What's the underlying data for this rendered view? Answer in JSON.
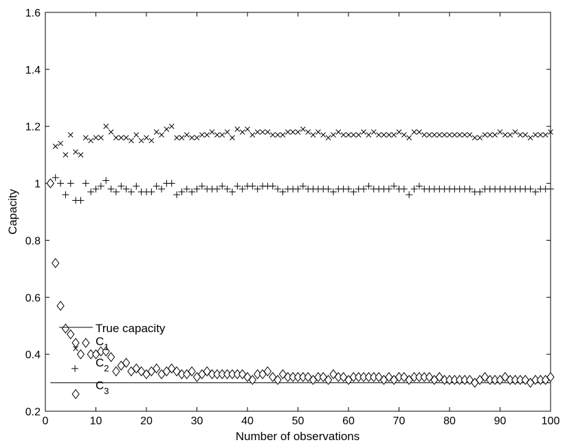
{
  "chart_data": {
    "type": "scatter",
    "title": "",
    "xlabel": "Number of observations",
    "ylabel": "Capacity",
    "xlim": [
      0,
      100
    ],
    "ylim": [
      0.2,
      1.6
    ],
    "xticks": [
      "0",
      "10",
      "20",
      "30",
      "40",
      "50",
      "60",
      "70",
      "80",
      "90",
      "100"
    ],
    "yticks": [
      "0.2",
      "0.4",
      "0.6",
      "0.8",
      "1",
      "1.2",
      "1.4",
      "1.6"
    ],
    "grid": false,
    "legend_position": "lower-left",
    "legend": {
      "true_capacity": "True capacity",
      "c1": "C",
      "c1_sub": "1",
      "c2": "C",
      "c2_sub": "2",
      "c3": "C",
      "c3_sub": "3"
    },
    "true_capacity": 0.3,
    "series": [
      {
        "marker": "x",
        "x": [
          1,
          2,
          3,
          4,
          5,
          6,
          7,
          8,
          9,
          10,
          11,
          12,
          13,
          14,
          15,
          16,
          17,
          18,
          19,
          20,
          21,
          22,
          23,
          24,
          25,
          26,
          27,
          28,
          29,
          30,
          31,
          32,
          33,
          34,
          35,
          36,
          37,
          38,
          39,
          40,
          41,
          42,
          43,
          44,
          45,
          46,
          47,
          48,
          49,
          50,
          51,
          52,
          53,
          54,
          55,
          56,
          57,
          58,
          59,
          60,
          61,
          62,
          63,
          64,
          65,
          66,
          67,
          68,
          69,
          70,
          71,
          72,
          73,
          74,
          75,
          76,
          77,
          78,
          79,
          80,
          81,
          82,
          83,
          84,
          85,
          86,
          87,
          88,
          89,
          90,
          91,
          92,
          93,
          94,
          95,
          96,
          97,
          98,
          99,
          100
        ],
        "y": [
          1.0,
          1.13,
          1.14,
          1.1,
          1.17,
          1.11,
          1.1,
          1.16,
          1.15,
          1.16,
          1.16,
          1.2,
          1.18,
          1.16,
          1.16,
          1.16,
          1.15,
          1.17,
          1.15,
          1.16,
          1.15,
          1.18,
          1.17,
          1.19,
          1.2,
          1.16,
          1.16,
          1.17,
          1.16,
          1.16,
          1.17,
          1.17,
          1.18,
          1.17,
          1.17,
          1.18,
          1.16,
          1.19,
          1.18,
          1.19,
          1.17,
          1.18,
          1.18,
          1.18,
          1.17,
          1.17,
          1.17,
          1.18,
          1.18,
          1.18,
          1.19,
          1.18,
          1.17,
          1.18,
          1.17,
          1.16,
          1.17,
          1.18,
          1.17,
          1.17,
          1.17,
          1.17,
          1.18,
          1.17,
          1.18,
          1.17,
          1.17,
          1.17,
          1.17,
          1.18,
          1.17,
          1.16,
          1.18,
          1.18,
          1.17,
          1.17,
          1.17,
          1.17,
          1.17,
          1.17,
          1.17,
          1.17,
          1.17,
          1.17,
          1.16,
          1.16,
          1.17,
          1.17,
          1.17,
          1.18,
          1.17,
          1.17,
          1.18,
          1.17,
          1.17,
          1.16,
          1.17,
          1.17,
          1.17,
          1.18
        ]
      },
      {
        "marker": "+",
        "x": [
          1,
          2,
          3,
          4,
          5,
          6,
          7,
          8,
          9,
          10,
          11,
          12,
          13,
          14,
          15,
          16,
          17,
          18,
          19,
          20,
          21,
          22,
          23,
          24,
          25,
          26,
          27,
          28,
          29,
          30,
          31,
          32,
          33,
          34,
          35,
          36,
          37,
          38,
          39,
          40,
          41,
          42,
          43,
          44,
          45,
          46,
          47,
          48,
          49,
          50,
          51,
          52,
          53,
          54,
          55,
          56,
          57,
          58,
          59,
          60,
          61,
          62,
          63,
          64,
          65,
          66,
          67,
          68,
          69,
          70,
          71,
          72,
          73,
          74,
          75,
          76,
          77,
          78,
          79,
          80,
          81,
          82,
          83,
          84,
          85,
          86,
          87,
          88,
          89,
          90,
          91,
          92,
          93,
          94,
          95,
          96,
          97,
          98,
          99,
          100
        ],
        "y": [
          1.0,
          1.02,
          1.0,
          0.96,
          1.0,
          0.94,
          0.94,
          1.0,
          0.97,
          0.98,
          0.99,
          1.01,
          0.98,
          0.97,
          0.99,
          0.98,
          0.97,
          0.99,
          0.97,
          0.97,
          0.97,
          0.99,
          0.98,
          1.0,
          1.0,
          0.96,
          0.97,
          0.98,
          0.97,
          0.98,
          0.99,
          0.98,
          0.98,
          0.98,
          0.99,
          0.98,
          0.97,
          0.99,
          0.98,
          0.99,
          0.99,
          0.98,
          0.99,
          0.99,
          0.99,
          0.98,
          0.97,
          0.98,
          0.98,
          0.98,
          0.99,
          0.98,
          0.98,
          0.98,
          0.98,
          0.98,
          0.97,
          0.98,
          0.98,
          0.98,
          0.97,
          0.98,
          0.98,
          0.99,
          0.98,
          0.98,
          0.98,
          0.98,
          0.99,
          0.98,
          0.98,
          0.96,
          0.98,
          0.99,
          0.98,
          0.98,
          0.98,
          0.98,
          0.98,
          0.98,
          0.98,
          0.98,
          0.98,
          0.98,
          0.97,
          0.97,
          0.98,
          0.98,
          0.98,
          0.98,
          0.98,
          0.98,
          0.98,
          0.98,
          0.98,
          0.98,
          0.97,
          0.98,
          0.98,
          0.98
        ]
      },
      {
        "marker": "diamond",
        "x": [
          1,
          2,
          3,
          4,
          5,
          6,
          7,
          8,
          9,
          10,
          11,
          12,
          13,
          14,
          15,
          16,
          17,
          18,
          19,
          20,
          21,
          22,
          23,
          24,
          25,
          26,
          27,
          28,
          29,
          30,
          31,
          32,
          33,
          34,
          35,
          36,
          37,
          38,
          39,
          40,
          41,
          42,
          43,
          44,
          45,
          46,
          47,
          48,
          49,
          50,
          51,
          52,
          53,
          54,
          55,
          56,
          57,
          58,
          59,
          60,
          61,
          62,
          63,
          64,
          65,
          66,
          67,
          68,
          69,
          70,
          71,
          72,
          73,
          74,
          75,
          76,
          77,
          78,
          79,
          80,
          81,
          82,
          83,
          84,
          85,
          86,
          87,
          88,
          89,
          90,
          91,
          92,
          93,
          94,
          95,
          96,
          97,
          98,
          99,
          100
        ],
        "y": [
          1.0,
          0.72,
          0.57,
          0.49,
          0.47,
          0.44,
          0.4,
          0.44,
          0.4,
          0.4,
          0.41,
          0.41,
          0.39,
          0.34,
          0.36,
          0.37,
          0.34,
          0.35,
          0.34,
          0.33,
          0.34,
          0.35,
          0.33,
          0.34,
          0.35,
          0.34,
          0.33,
          0.33,
          0.34,
          0.32,
          0.33,
          0.34,
          0.33,
          0.33,
          0.33,
          0.33,
          0.33,
          0.33,
          0.33,
          0.32,
          0.31,
          0.33,
          0.33,
          0.34,
          0.32,
          0.31,
          0.33,
          0.32,
          0.32,
          0.32,
          0.32,
          0.32,
          0.31,
          0.32,
          0.32,
          0.31,
          0.33,
          0.32,
          0.32,
          0.31,
          0.32,
          0.32,
          0.32,
          0.32,
          0.32,
          0.32,
          0.31,
          0.32,
          0.31,
          0.32,
          0.32,
          0.31,
          0.32,
          0.32,
          0.32,
          0.32,
          0.31,
          0.32,
          0.31,
          0.31,
          0.31,
          0.31,
          0.31,
          0.31,
          0.3,
          0.31,
          0.32,
          0.31,
          0.31,
          0.31,
          0.32,
          0.31,
          0.31,
          0.31,
          0.31,
          0.3,
          0.31,
          0.31,
          0.31,
          0.32
        ]
      }
    ],
    "legend_sample_points": {
      "c1_y": 0.42,
      "c2_y": 0.345,
      "c3_y": 0.265
    }
  }
}
